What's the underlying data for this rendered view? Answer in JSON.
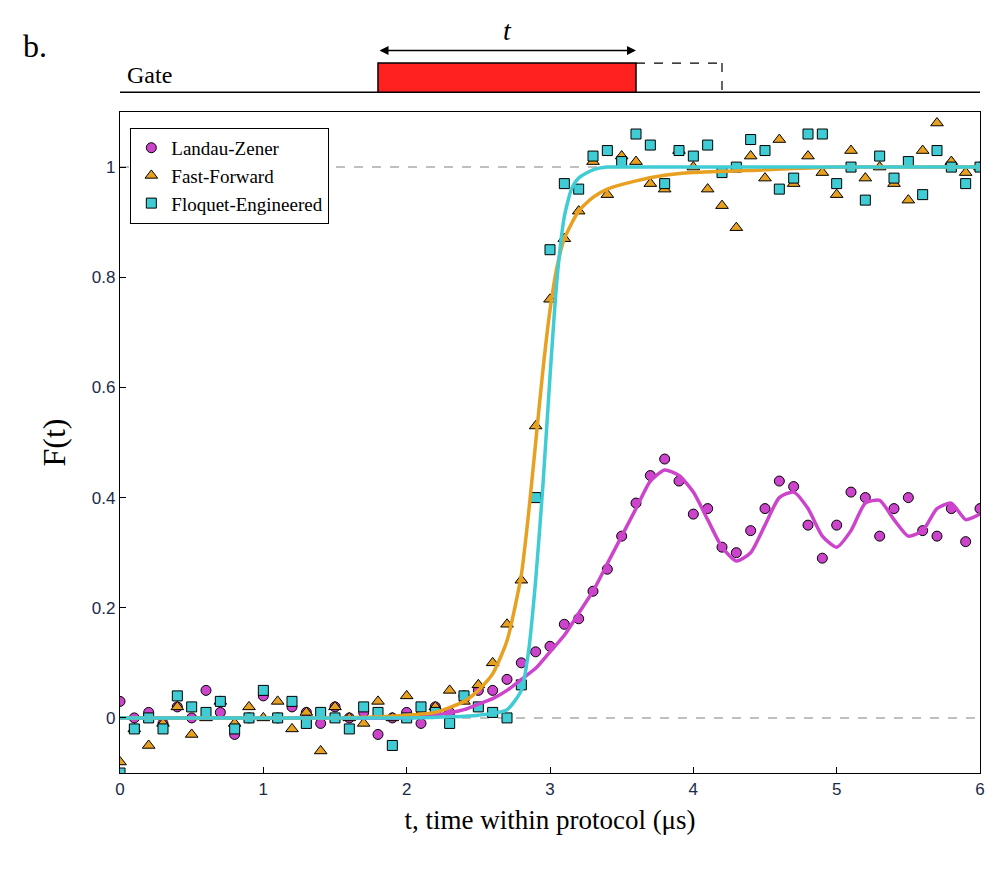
{
  "chart_data": {
    "type": "scatter",
    "panel_label": "b.",
    "x_label": "t, time within protocol (μs)",
    "y_label": "F(t)",
    "xlim": [
      0,
      6
    ],
    "ylim": [
      -0.1,
      1.1
    ],
    "xticks": [
      0,
      1,
      2,
      3,
      4,
      5,
      6
    ],
    "yticks": [
      0,
      0.2,
      0.4,
      0.6,
      0.8,
      1
    ],
    "hlines": [
      0,
      1
    ],
    "legend": "upper left",
    "gate": {
      "label": "Gate",
      "arrow_label": "t",
      "start": 1.8,
      "end": 3.6,
      "dashed_end": 4.2
    },
    "x": [
      0,
      0.1,
      0.2,
      0.3,
      0.4,
      0.5,
      0.6,
      0.7,
      0.8,
      0.9,
      1.0,
      1.1,
      1.2,
      1.3,
      1.4,
      1.5,
      1.6,
      1.7,
      1.8,
      1.9,
      2.0,
      2.1,
      2.2,
      2.3,
      2.4,
      2.5,
      2.6,
      2.7,
      2.8,
      2.9,
      3.0,
      3.1,
      3.2,
      3.3,
      3.4,
      3.5,
      3.6,
      3.7,
      3.8,
      3.9,
      4.0,
      4.1,
      4.2,
      4.3,
      4.4,
      4.5,
      4.6,
      4.7,
      4.8,
      4.9,
      5.0,
      5.1,
      5.2,
      5.3,
      5.4,
      5.5,
      5.6,
      5.7,
      5.8,
      5.9,
      6.0
    ],
    "series": [
      {
        "name": "Landau-Zener",
        "color": "#cc44cc",
        "marker": "circle",
        "values": [
          0.03,
          0.0,
          0.01,
          -0.01,
          0.02,
          0.0,
          0.05,
          0.01,
          -0.03,
          0.0,
          0.04,
          0.0,
          0.02,
          0.01,
          -0.01,
          0.02,
          0.0,
          0.01,
          -0.03,
          0.0,
          0.01,
          -0.01,
          0.02,
          0.01,
          0.04,
          0.05,
          0.05,
          0.07,
          0.1,
          0.12,
          0.13,
          0.17,
          0.18,
          0.23,
          0.27,
          0.33,
          0.39,
          0.44,
          0.47,
          0.43,
          0.37,
          0.38,
          0.31,
          0.3,
          0.34,
          0.38,
          0.43,
          0.42,
          0.35,
          0.29,
          0.35,
          0.41,
          0.4,
          0.33,
          0.38,
          0.4,
          0.34,
          0.33,
          0.38,
          0.32,
          0.38
        ],
        "fit": {
          "x": [
            0,
            0.5,
            1,
            1.5,
            2,
            2.2,
            2.4,
            2.5,
            2.6,
            2.7,
            2.8,
            2.9,
            3.0,
            3.1,
            3.2,
            3.3,
            3.4,
            3.5,
            3.6,
            3.7,
            3.8,
            3.9,
            4.0,
            4.1,
            4.2,
            4.3,
            4.4,
            4.5,
            4.6,
            4.7,
            4.8,
            4.9,
            5.0,
            5.1,
            5.2,
            5.3,
            5.4,
            5.5,
            5.6,
            5.7,
            5.8,
            5.9,
            6.0
          ],
          "values": [
            0,
            0,
            0,
            0,
            0,
            0.005,
            0.015,
            0.025,
            0.035,
            0.05,
            0.07,
            0.09,
            0.12,
            0.15,
            0.19,
            0.23,
            0.28,
            0.33,
            0.38,
            0.43,
            0.45,
            0.44,
            0.41,
            0.36,
            0.31,
            0.285,
            0.3,
            0.35,
            0.4,
            0.41,
            0.38,
            0.33,
            0.31,
            0.34,
            0.39,
            0.395,
            0.36,
            0.33,
            0.34,
            0.38,
            0.39,
            0.36,
            0.37
          ]
        }
      },
      {
        "name": "Fast-Forward",
        "color": "#e8a020",
        "marker": "triangle-up",
        "values": [
          -0.08,
          -0.02,
          -0.05,
          -0.01,
          0.02,
          -0.03,
          0.0,
          0.03,
          -0.01,
          0.02,
          0.0,
          0.03,
          -0.02,
          0.01,
          -0.06,
          0.02,
          0.0,
          -0.01,
          0.03,
          0.0,
          0.04,
          0.01,
          0.02,
          0.05,
          0.03,
          0.06,
          0.1,
          0.17,
          0.25,
          0.53,
          0.76,
          0.87,
          0.92,
          1.01,
          0.95,
          1.02,
          1.01,
          0.97,
          0.96,
          1.03,
          1.0,
          0.96,
          0.93,
          0.89,
          1.02,
          0.98,
          1.05,
          0.97,
          1.02,
          0.99,
          0.95,
          1.03,
          0.98,
          1.0,
          0.97,
          0.94,
          1.03,
          1.08,
          1.01,
          0.99,
          1.0
        ],
        "fit": {
          "x": [
            0,
            0.5,
            1,
            1.5,
            2,
            2.2,
            2.4,
            2.5,
            2.6,
            2.7,
            2.8,
            2.85,
            2.9,
            2.95,
            3.0,
            3.05,
            3.1,
            3.2,
            3.3,
            3.4,
            3.6,
            3.8,
            4.0,
            4.5,
            5.0,
            5.5,
            6.0
          ],
          "values": [
            0,
            0,
            0,
            0,
            0.005,
            0.01,
            0.03,
            0.05,
            0.08,
            0.14,
            0.26,
            0.37,
            0.5,
            0.63,
            0.74,
            0.82,
            0.87,
            0.92,
            0.945,
            0.96,
            0.975,
            0.985,
            0.99,
            0.995,
            1.0,
            1.0,
            1.0
          ]
        }
      },
      {
        "name": "Floquet-Engineered",
        "color": "#40ccd4",
        "marker": "square",
        "values": [
          -0.1,
          -0.02,
          0.0,
          -0.02,
          0.04,
          0.02,
          0.01,
          0.03,
          -0.02,
          0.0,
          0.05,
          0.0,
          0.03,
          -0.01,
          0.01,
          0.0,
          -0.02,
          0.02,
          0.01,
          -0.05,
          0.0,
          0.02,
          0.01,
          -0.01,
          0.04,
          0.02,
          0.01,
          0.0,
          0.06,
          0.4,
          0.85,
          0.97,
          0.96,
          1.02,
          1.03,
          1.01,
          1.06,
          1.04,
          0.97,
          1.03,
          1.02,
          1.04,
          0.99,
          1.0,
          1.05,
          1.03,
          0.96,
          0.98,
          1.06,
          1.06,
          0.97,
          1.0,
          0.94,
          1.02,
          0.98,
          1.01,
          0.95,
          1.03,
          1.0,
          0.97,
          1.0
        ],
        "fit": {
          "x": [
            0,
            0.5,
            1,
            1.5,
            2,
            2.5,
            2.7,
            2.8,
            2.85,
            2.9,
            2.95,
            3.0,
            3.05,
            3.1,
            3.15,
            3.2,
            3.3,
            3.4,
            3.6,
            4.0,
            5.0,
            6.0
          ],
          "values": [
            0,
            0,
            0,
            0,
            0,
            0.005,
            0.015,
            0.05,
            0.12,
            0.25,
            0.42,
            0.62,
            0.8,
            0.91,
            0.96,
            0.98,
            0.995,
            1.0,
            1.0,
            1.0,
            1.0,
            1.0
          ]
        }
      }
    ]
  }
}
